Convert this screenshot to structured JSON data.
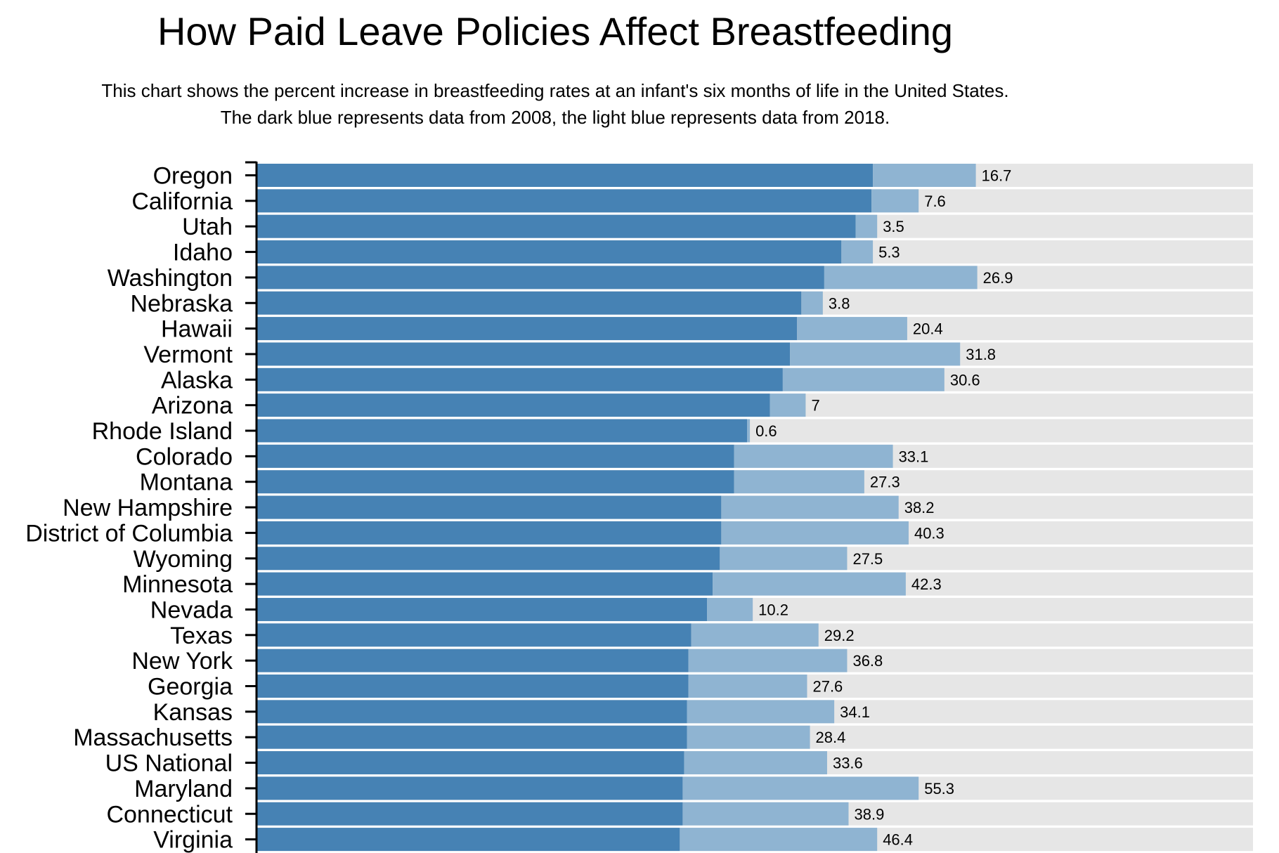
{
  "header": {
    "title": "How Paid Leave Policies Affect Breastfeeding",
    "subtitle_line1": "This chart shows the percent increase in breastfeeding rates at an infant's six months of life in the United States.",
    "subtitle_line2": "The dark blue represents data from 2008, the light blue represents data from 2018."
  },
  "colors": {
    "dark_blue": "#4682b4",
    "light_blue": "#8fb4d2",
    "track": "#e6e6e6",
    "axis": "#000000"
  },
  "chart_data": {
    "type": "bar",
    "orientation": "horizontal",
    "stacked": true,
    "title": "How Paid Leave Policies Affect Breastfeeding",
    "xlim": [
      0,
      70
    ],
    "categories": [
      "Oregon",
      "California",
      "Utah",
      "Idaho",
      "Washington",
      "Nebraska",
      "Hawaii",
      "Vermont",
      "Alaska",
      "Arizona",
      "Rhode Island",
      "Colorado",
      "Montana",
      "New Hampshire",
      "District of Columbia",
      "Wyoming",
      "Minnesota",
      "Nevada",
      "Texas",
      "New York",
      "Georgia",
      "Kansas",
      "Massachusetts",
      "US National",
      "Maryland",
      "Connecticut",
      "Virginia"
    ],
    "series": [
      {
        "values": [
          43.1,
          43.0,
          41.9,
          40.9,
          39.7,
          38.1,
          37.8,
          37.3,
          36.8,
          35.9,
          34.3,
          33.4,
          33.4,
          32.5,
          32.5,
          32.4,
          31.9,
          31.5,
          30.4,
          30.2,
          30.2,
          30.1,
          30.1,
          29.9,
          29.8,
          29.8,
          29.6
        ]
      },
      {
        "values": [
          7.2,
          3.3,
          1.5,
          2.2,
          10.7,
          1.5,
          7.7,
          11.9,
          11.3,
          2.5,
          0.2,
          11.1,
          9.1,
          12.4,
          13.1,
          8.9,
          13.5,
          3.2,
          8.9,
          11.1,
          8.3,
          10.3,
          8.6,
          10.0,
          16.5,
          11.6,
          13.8
        ]
      }
    ],
    "data_labels": [
      "16.7",
      "7.6",
      "3.5",
      "5.3",
      "26.9",
      "3.8",
      "20.4",
      "31.8",
      "30.6",
      "7",
      "0.6",
      "33.1",
      "27.3",
      "38.2",
      "40.3",
      "27.5",
      "42.3",
      "10.2",
      "29.2",
      "36.8",
      "27.6",
      "34.1",
      "28.4",
      "33.6",
      "55.3",
      "38.9",
      "46.4"
    ]
  }
}
